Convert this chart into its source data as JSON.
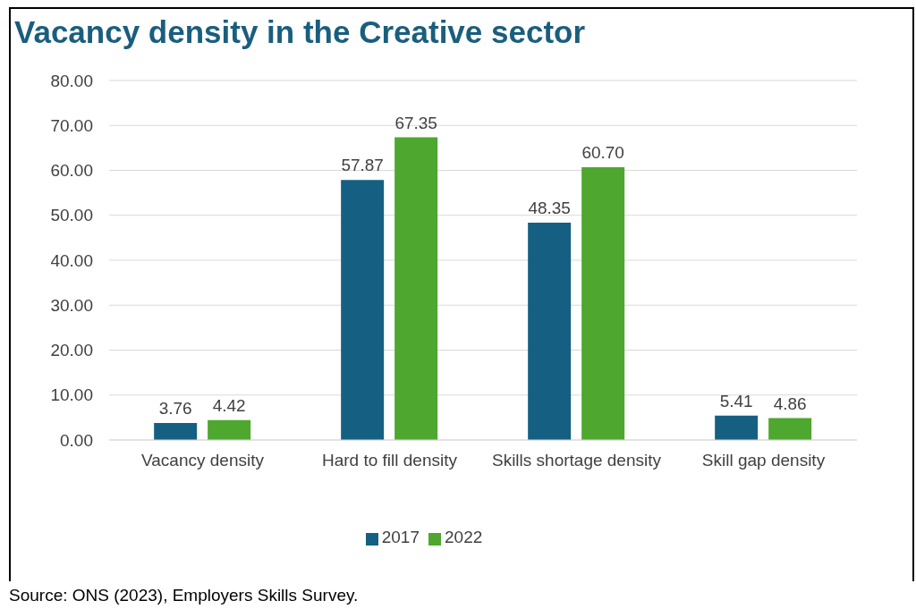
{
  "chart_data": {
    "type": "bar",
    "title": "Vacancy density in the Creative sector",
    "categories": [
      "Vacancy density",
      "Hard to fill density",
      "Skills shortage density",
      "Skill gap density"
    ],
    "series": [
      {
        "name": "2017",
        "color": "#156082",
        "values": [
          3.76,
          57.87,
          48.35,
          5.41
        ],
        "value_labels": [
          "3.76",
          "57.87",
          "48.35",
          "5.41"
        ]
      },
      {
        "name": "2022",
        "color": "#4ea72e",
        "values": [
          4.42,
          67.35,
          60.7,
          4.86
        ],
        "value_labels": [
          "4.42",
          "67.35",
          "60.70",
          "4.86"
        ]
      }
    ],
    "ylim": [
      0,
      80
    ],
    "yticks": [
      {
        "value": 0,
        "label": "0.00"
      },
      {
        "value": 10,
        "label": "10.00"
      },
      {
        "value": 20,
        "label": "20.00"
      },
      {
        "value": 30,
        "label": "30.00"
      },
      {
        "value": 40,
        "label": "40.00"
      },
      {
        "value": 50,
        "label": "50.00"
      },
      {
        "value": 60,
        "label": "60.00"
      },
      {
        "value": 70,
        "label": "70.00"
      },
      {
        "value": 80,
        "label": "80.00"
      }
    ],
    "grid": "y",
    "legend": "bottom",
    "annotations": [
      "Source: ONS (2023), Employers Skills Survey."
    ]
  }
}
